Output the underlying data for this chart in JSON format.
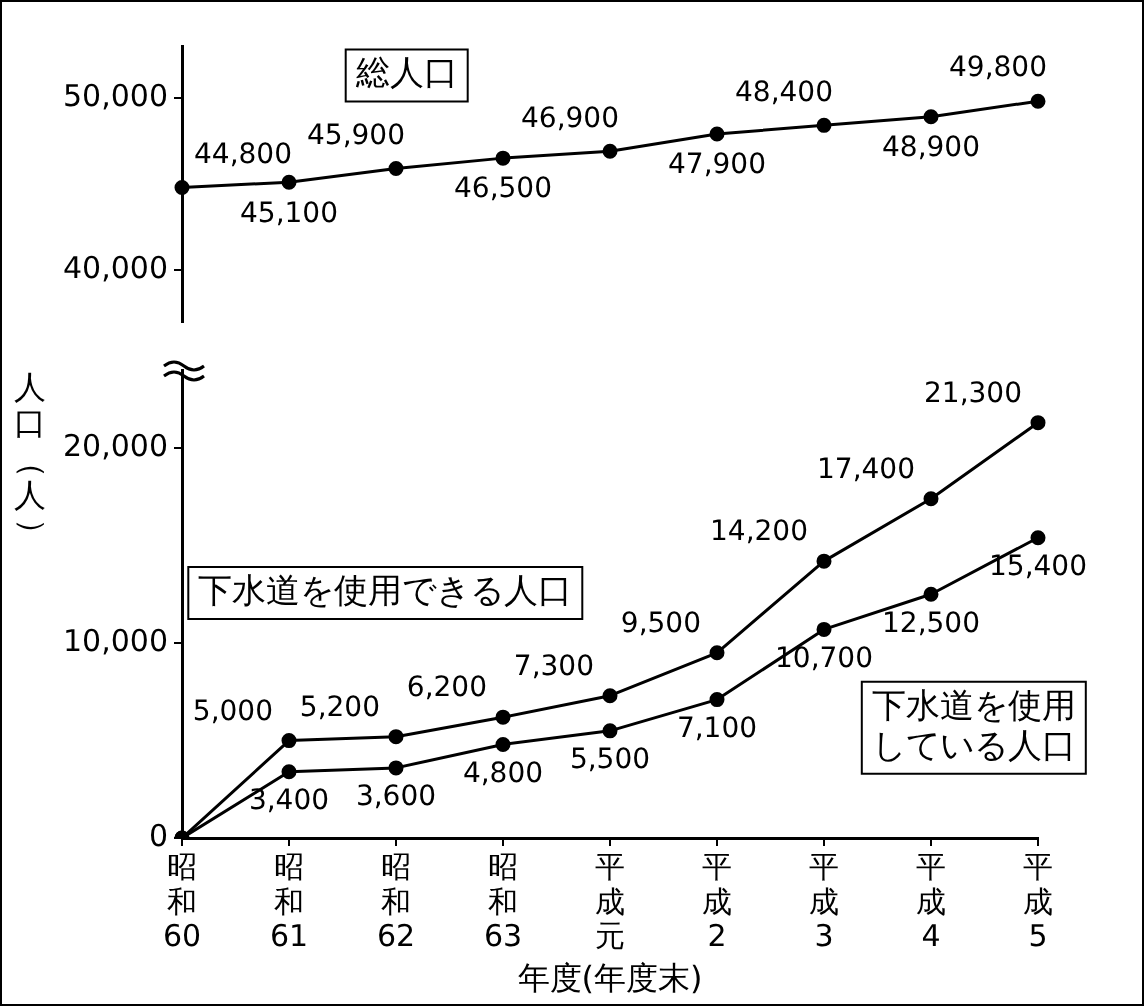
{
  "chart_data": [
    {
      "type": "line",
      "categories": [
        "昭和60",
        "昭和61",
        "昭和62",
        "昭和63",
        "平成元",
        "平成2",
        "平成3",
        "平成4",
        "平成5"
      ],
      "series": [
        {
          "name": "総人口",
          "color": "#000000",
          "values": [
            44800,
            45100,
            45900,
            46500,
            46900,
            47900,
            48400,
            48900,
            49800
          ],
          "value_labels": [
            "44,800",
            "45,100",
            "45,900",
            "46,500",
            "46,900",
            "47,900",
            "48,400",
            "48,900",
            "49,800"
          ]
        }
      ],
      "ylim": [
        37000,
        53000
      ],
      "yticks": [
        {
          "value": 40000,
          "label": "40,000"
        },
        {
          "value": 50000,
          "label": "50,000"
        }
      ],
      "tick_labels": "y",
      "grid": false,
      "legend": false,
      "marker": "circle",
      "line_style": "solid"
    },
    {
      "type": "line",
      "categories": [
        "昭和60",
        "昭和61",
        "昭和62",
        "昭和63",
        "平成元",
        "平成2",
        "平成3",
        "平成4",
        "平成5"
      ],
      "series": [
        {
          "name": "下水道を使用できる人口",
          "color": "#000000",
          "values": [
            0,
            5000,
            5200,
            6200,
            7300,
            9500,
            14200,
            17400,
            21300
          ],
          "value_labels": [
            null,
            "5,000",
            "5,200",
            "6,200",
            "7,300",
            "9,500",
            "14,200",
            "17,400",
            "21,300"
          ]
        },
        {
          "name": "下水道を使用している人口",
          "color": "#000000",
          "values": [
            0,
            3400,
            3600,
            4800,
            5500,
            7100,
            10700,
            12500,
            15400
          ],
          "value_labels": [
            null,
            "3,400",
            "3,600",
            "4,800",
            "5,500",
            "7,100",
            "10,700",
            "12,500",
            "15,400"
          ]
        }
      ],
      "xlabel": "年度(年度末)",
      "ylabel": "人口（人）",
      "ylim": [
        0,
        24000
      ],
      "yticks": [
        0,
        {
          "value": 10000,
          "label": "10,000"
        },
        {
          "value": 20000,
          "label": "20,000"
        }
      ],
      "grid": false,
      "legend": false,
      "marker": "circle",
      "line_style": "solid"
    }
  ]
}
